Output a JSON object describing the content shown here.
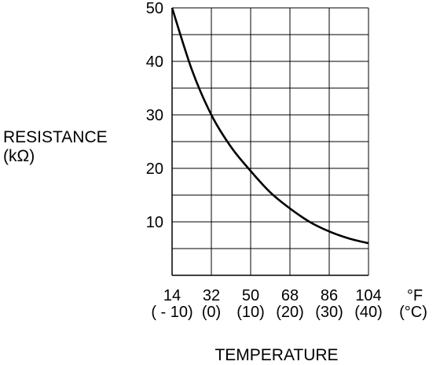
{
  "chart_data": {
    "type": "line",
    "ylabel": [
      "RESISTANCE",
      "(kΩ)"
    ],
    "xlabel": "TEMPERATURE",
    "x_unit_f": "°F",
    "x_unit_c": "(°C)",
    "x_ticks_f": [
      "14",
      "32",
      "50",
      "68",
      "86",
      "104"
    ],
    "x_ticks_c": [
      "( - 10)",
      "(0)",
      "(10)",
      "(20)",
      "(30)",
      "(40)"
    ],
    "y_ticks": [
      "50",
      "40",
      "30",
      "20",
      "10"
    ],
    "xlim": [
      14,
      104
    ],
    "ylim": [
      0,
      50
    ],
    "grid": true,
    "series": [
      {
        "x": [
          14,
          23,
          32,
          41,
          50,
          59,
          68,
          77,
          86,
          95,
          104
        ],
        "values": [
          50,
          38.5,
          30,
          24,
          19.5,
          15.5,
          12.5,
          10,
          8.2,
          6.9,
          6
        ]
      }
    ],
    "colors": {
      "line": "#000000",
      "grid": "#000000"
    }
  }
}
